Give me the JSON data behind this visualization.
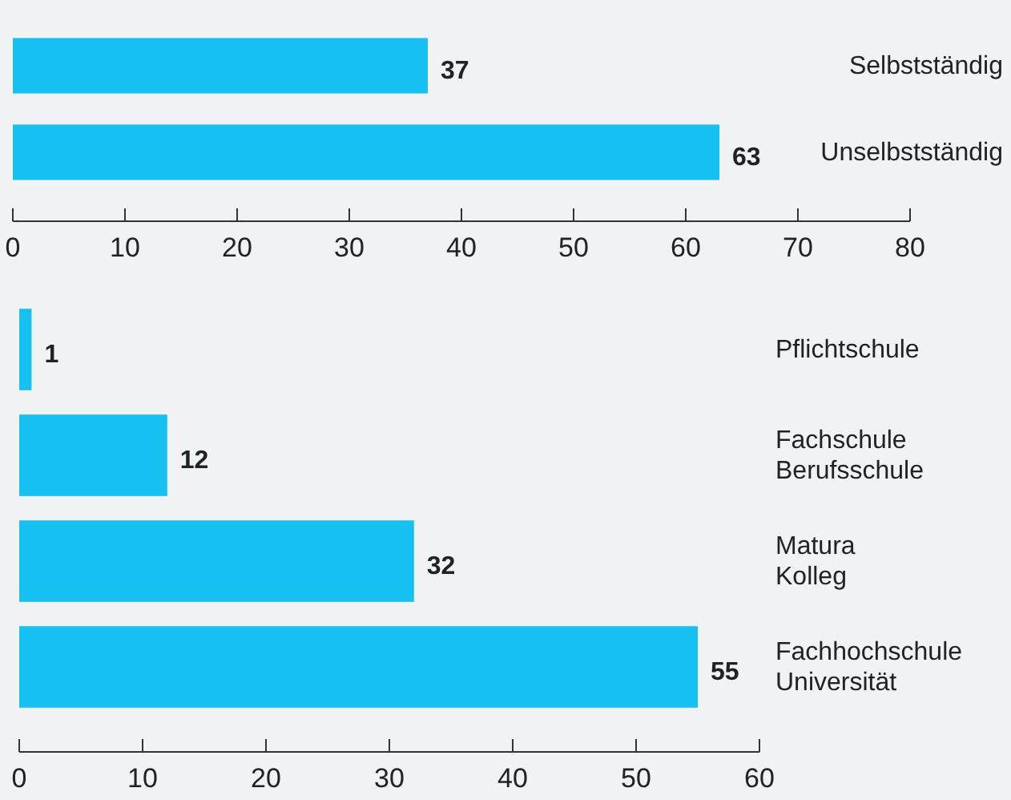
{
  "chart_data": [
    {
      "type": "bar",
      "orientation": "horizontal",
      "categories": [
        "Selbstständig",
        "Unselbstständig"
      ],
      "values": [
        37,
        63
      ],
      "color": "#16c1f2",
      "xlim": [
        0,
        80
      ],
      "xticks": [
        0,
        10,
        20,
        30,
        40,
        50,
        60,
        70,
        80
      ],
      "data_labels": true
    },
    {
      "type": "bar",
      "orientation": "horizontal",
      "categories": [
        "Pflichtschule",
        "Fachschule\nBerufsschule",
        "Matura\nKolleg",
        "Fachhochschule\nUniversität"
      ],
      "values": [
        1,
        12,
        32,
        55
      ],
      "color": "#16c1f2",
      "xlim": [
        0,
        60
      ],
      "xticks": [
        0,
        10,
        20,
        30,
        40,
        50,
        60
      ],
      "data_labels": true
    }
  ]
}
